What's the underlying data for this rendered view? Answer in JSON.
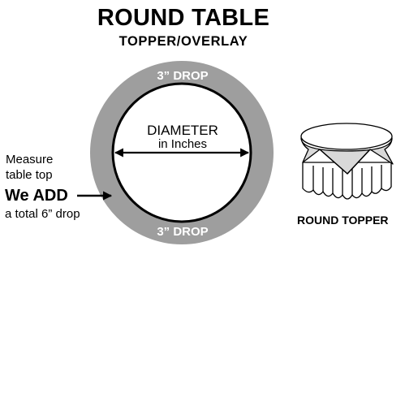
{
  "header": {
    "title": "ROUND TABLE",
    "subtitle": "TOPPER/OVERLAY"
  },
  "circle_diagram": {
    "top_drop_label": "3” DROP",
    "bottom_drop_label": "3” DROP",
    "diameter_label": "DIAMETER",
    "diameter_unit_label": "in Inches",
    "ring_color": "#9e9e9e",
    "ring_text_color": "#ffffff"
  },
  "side_note": {
    "measure_line1": "Measure",
    "measure_line2": "table top",
    "we_add": "We ADD",
    "drop_note": "a total 6” drop"
  },
  "topper_illustration": {
    "label": "ROUND TOPPER",
    "topper_color": "#d9d9d9"
  }
}
